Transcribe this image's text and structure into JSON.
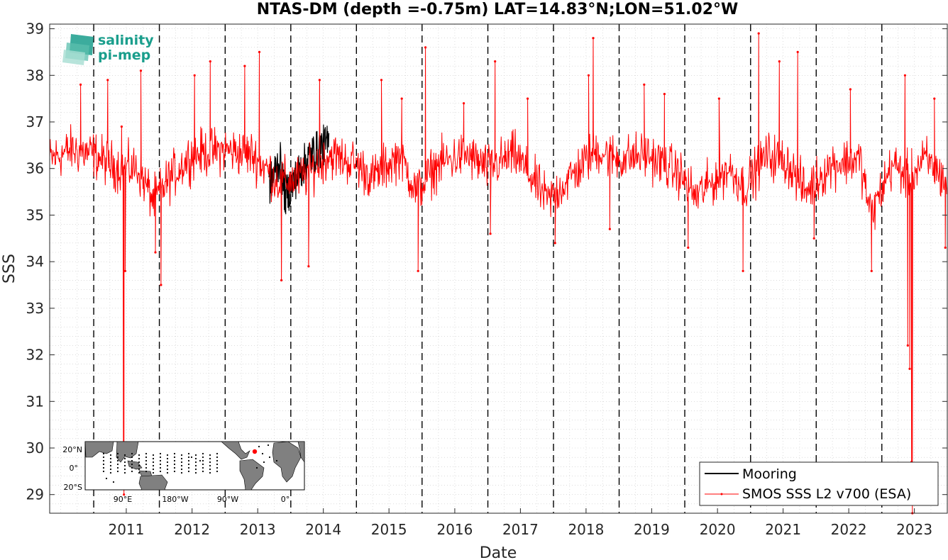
{
  "chart_data": {
    "type": "line",
    "title": "NTAS-DM (depth =-0.75m) LAT=14.83°N;LON=51.02°W",
    "xlabel": "Date",
    "ylabel": "SSS",
    "xlim": [
      "2010-05-01",
      "2023-12-31"
    ],
    "ylim": [
      28.6,
      39.1
    ],
    "x_ticks": [
      "2011",
      "2012",
      "2013",
      "2014",
      "2015",
      "2016",
      "2017",
      "2018",
      "2019",
      "2020",
      "2021",
      "2022",
      "2023"
    ],
    "y_ticks": [
      29,
      30,
      31,
      32,
      33,
      34,
      35,
      36,
      37,
      38,
      39
    ],
    "grid": true,
    "grid_style": "dotted",
    "year_boundaries_style": "dashed black vertical lines at each January 1",
    "legend_position": "bottom-right",
    "series": [
      {
        "name": "Mooring",
        "color": "#000000",
        "description_points": [
          [
            "2013-09-01",
            35.6
          ],
          [
            "2013-10-01",
            35.9
          ],
          [
            "2013-11-01",
            36.2
          ],
          [
            "2013-12-01",
            35.4
          ],
          [
            "2014-01-01",
            35.6
          ],
          [
            "2014-02-01",
            35.8
          ],
          [
            "2014-03-01",
            36.0
          ],
          [
            "2014-04-01",
            36.2
          ],
          [
            "2014-05-01",
            36.3
          ],
          [
            "2014-06-01",
            36.4
          ],
          [
            "2014-07-01",
            36.5
          ],
          [
            "2014-08-01",
            36.5
          ]
        ]
      },
      {
        "name": "SMOS SSS L2 v700 (ESA)",
        "color": "#ff0000",
        "marker": "dot",
        "baseline": [
          [
            "2010-05-01",
            36.2
          ],
          [
            "2010-09-01",
            36.4
          ],
          [
            "2011-01-01",
            36.3
          ],
          [
            "2011-04-01",
            36.1
          ],
          [
            "2011-06-01",
            36.0
          ],
          [
            "2011-09-01",
            36.0
          ],
          [
            "2011-12-01",
            35.3
          ],
          [
            "2012-03-01",
            35.8
          ],
          [
            "2012-07-01",
            36.3
          ],
          [
            "2013-01-01",
            36.4
          ],
          [
            "2013-06-01",
            36.3
          ],
          [
            "2013-11-01",
            35.7
          ],
          [
            "2014-03-01",
            35.8
          ],
          [
            "2014-08-01",
            36.3
          ],
          [
            "2015-01-01",
            36.1
          ],
          [
            "2015-04-01",
            35.8
          ],
          [
            "2015-09-01",
            36.3
          ],
          [
            "2015-12-01",
            35.5
          ],
          [
            "2016-04-01",
            36.1
          ],
          [
            "2016-09-01",
            36.3
          ],
          [
            "2017-01-01",
            36.0
          ],
          [
            "2017-06-01",
            36.3
          ],
          [
            "2017-12-01",
            35.3
          ],
          [
            "2018-04-01",
            35.8
          ],
          [
            "2018-09-01",
            36.4
          ],
          [
            "2019-01-01",
            36.2
          ],
          [
            "2019-06-01",
            36.3
          ],
          [
            "2019-12-01",
            35.9
          ],
          [
            "2020-03-01",
            35.4
          ],
          [
            "2020-09-01",
            36.0
          ],
          [
            "2020-12-01",
            35.6
          ],
          [
            "2021-04-01",
            36.3
          ],
          [
            "2021-08-01",
            36.1
          ],
          [
            "2021-11-01",
            35.5
          ],
          [
            "2022-04-01",
            36.1
          ],
          [
            "2022-09-01",
            36.2
          ],
          [
            "2022-11-01",
            35.0
          ],
          [
            "2023-03-01",
            36.1
          ],
          [
            "2023-06-01",
            35.8
          ],
          [
            "2023-09-01",
            36.2
          ],
          [
            "2023-12-31",
            35.7
          ]
        ],
        "noise_amplitude": 0.75,
        "peaks": [
          [
            "2010-10-20",
            37.8
          ],
          [
            "2011-03-20",
            37.9
          ],
          [
            "2011-06-05",
            36.9
          ],
          [
            "2011-06-15",
            30.0
          ],
          [
            "2011-06-18",
            29.0
          ],
          [
            "2011-06-25",
            33.8
          ],
          [
            "2011-09-20",
            38.1
          ],
          [
            "2011-12-10",
            34.2
          ],
          [
            "2012-01-10",
            33.5
          ],
          [
            "2012-07-15",
            38.0
          ],
          [
            "2012-10-10",
            38.3
          ],
          [
            "2013-04-20",
            38.2
          ],
          [
            "2013-07-10",
            38.5
          ],
          [
            "2013-11-10",
            33.6
          ],
          [
            "2014-04-10",
            33.9
          ],
          [
            "2014-06-10",
            37.9
          ],
          [
            "2015-05-20",
            37.9
          ],
          [
            "2015-09-10",
            37.5
          ],
          [
            "2015-12-10",
            33.8
          ],
          [
            "2016-01-20",
            38.6
          ],
          [
            "2016-08-20",
            37.4
          ],
          [
            "2017-01-15",
            34.6
          ],
          [
            "2017-02-10",
            38.3
          ],
          [
            "2017-08-10",
            37.5
          ],
          [
            "2018-01-10",
            34.4
          ],
          [
            "2018-07-15",
            38.0
          ],
          [
            "2018-08-10",
            38.8
          ],
          [
            "2018-11-10",
            34.7
          ],
          [
            "2019-05-20",
            37.8
          ],
          [
            "2019-09-10",
            37.6
          ],
          [
            "2020-01-20",
            34.3
          ],
          [
            "2020-07-10",
            37.5
          ],
          [
            "2020-11-20",
            33.8
          ],
          [
            "2021-02-15",
            38.9
          ],
          [
            "2021-06-10",
            38.3
          ],
          [
            "2021-09-20",
            38.5
          ],
          [
            "2021-12-20",
            34.5
          ],
          [
            "2022-07-10",
            37.7
          ],
          [
            "2022-11-05",
            33.8
          ],
          [
            "2023-05-10",
            38.0
          ],
          [
            "2023-05-25",
            32.2
          ],
          [
            "2023-06-05",
            31.7
          ],
          [
            "2023-06-15",
            29.7
          ],
          [
            "2023-06-20",
            28.6
          ],
          [
            "2023-10-20",
            37.5
          ],
          [
            "2023-12-20",
            34.3
          ]
        ]
      }
    ],
    "inset_map": {
      "lat_labels": [
        "20°N",
        "0°",
        "20°S"
      ],
      "lon_labels": [
        "90°E",
        "180°W",
        "90°W",
        "0°"
      ],
      "location_marker_color": "#ff0000"
    }
  },
  "logo": {
    "line1": "salinity",
    "line2": "pi-mep"
  }
}
